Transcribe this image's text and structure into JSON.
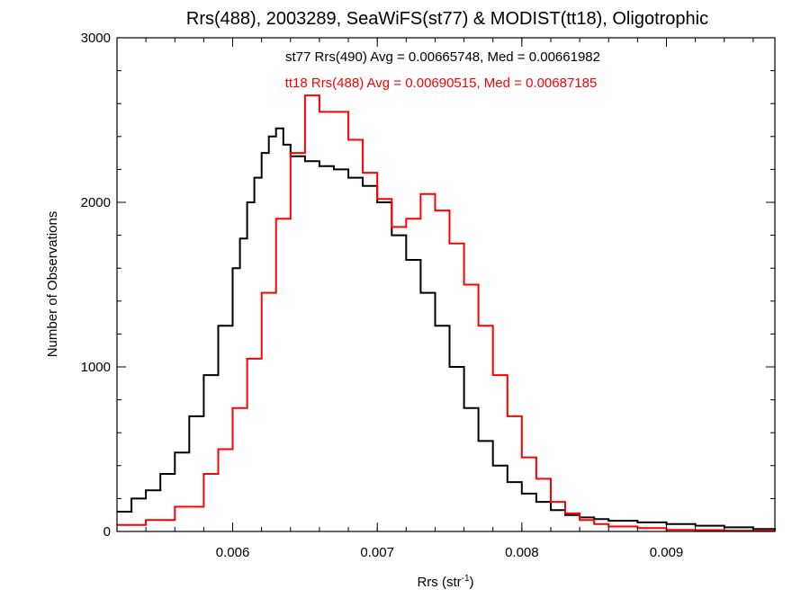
{
  "chart_data": {
    "type": "line",
    "title": "Rrs(488), 2003289, SeaWiFS(st77) & MODIST(tt18), Oligotrophic",
    "xlabel_main": "Rrs (str",
    "xlabel_sup": "-1",
    "xlabel_close": ")",
    "ylabel": "Number of Observations",
    "xlim": [
      0.0052,
      0.00975
    ],
    "ylim": [
      0,
      3000
    ],
    "x_ticks": [
      {
        "value": 0.006,
        "label": "0.006"
      },
      {
        "value": 0.007,
        "label": "0.007"
      },
      {
        "value": 0.008,
        "label": "0.008"
      },
      {
        "value": 0.009,
        "label": "0.009"
      }
    ],
    "y_ticks": [
      {
        "value": 0,
        "label": "0"
      },
      {
        "value": 1000,
        "label": "1000"
      },
      {
        "value": 2000,
        "label": "2000"
      },
      {
        "value": 3000,
        "label": "3000"
      }
    ],
    "grid": false,
    "annotations": [
      {
        "text": "st77 Rrs(490) Avg = 0.00665748, Med = 0.00661982",
        "color": "#000000"
      },
      {
        "text": "tt18 Rrs(488) Avg = 0.00690515, Med = 0.00687185",
        "color": "#ff0000"
      }
    ],
    "series": [
      {
        "color": "#000000",
        "x": [
          0.0052,
          0.0053,
          0.0054,
          0.0055,
          0.0056,
          0.0057,
          0.0058,
          0.0059,
          0.006,
          0.00605,
          0.0061,
          0.00615,
          0.0062,
          0.00625,
          0.0063,
          0.00635,
          0.0064,
          0.0065,
          0.0066,
          0.0067,
          0.0068,
          0.0069,
          0.007,
          0.0071,
          0.0072,
          0.0073,
          0.0074,
          0.0075,
          0.0076,
          0.0077,
          0.0078,
          0.0079,
          0.008,
          0.0081,
          0.0082,
          0.0083,
          0.0084,
          0.0085,
          0.0086,
          0.0088,
          0.009,
          0.0092,
          0.0094,
          0.0096,
          0.00975
        ],
        "y": [
          120,
          200,
          250,
          350,
          480,
          700,
          950,
          1250,
          1600,
          1780,
          2000,
          2150,
          2300,
          2400,
          2450,
          2350,
          2280,
          2250,
          2220,
          2200,
          2150,
          2100,
          2000,
          1800,
          1650,
          1450,
          1250,
          1000,
          750,
          550,
          400,
          300,
          230,
          180,
          130,
          100,
          85,
          75,
          65,
          55,
          45,
          35,
          25,
          15,
          10
        ]
      },
      {
        "color": "#ff0000",
        "x": [
          0.0052,
          0.0054,
          0.0056,
          0.0058,
          0.0059,
          0.006,
          0.0061,
          0.0062,
          0.0063,
          0.0064,
          0.0065,
          0.0066,
          0.0067,
          0.0068,
          0.0069,
          0.007,
          0.0071,
          0.0072,
          0.0073,
          0.0074,
          0.0075,
          0.0076,
          0.0077,
          0.0078,
          0.0079,
          0.008,
          0.0081,
          0.0082,
          0.0083,
          0.0084,
          0.0085,
          0.0086,
          0.0088,
          0.009,
          0.0092,
          0.0094,
          0.00975
        ],
        "y": [
          40,
          70,
          150,
          350,
          500,
          750,
          1050,
          1450,
          1900,
          2300,
          2650,
          2550,
          2550,
          2380,
          2180,
          2020,
          1850,
          1900,
          2050,
          1950,
          1750,
          1500,
          1250,
          950,
          700,
          450,
          320,
          180,
          110,
          70,
          45,
          30,
          20,
          10,
          8,
          5,
          3
        ]
      }
    ]
  }
}
